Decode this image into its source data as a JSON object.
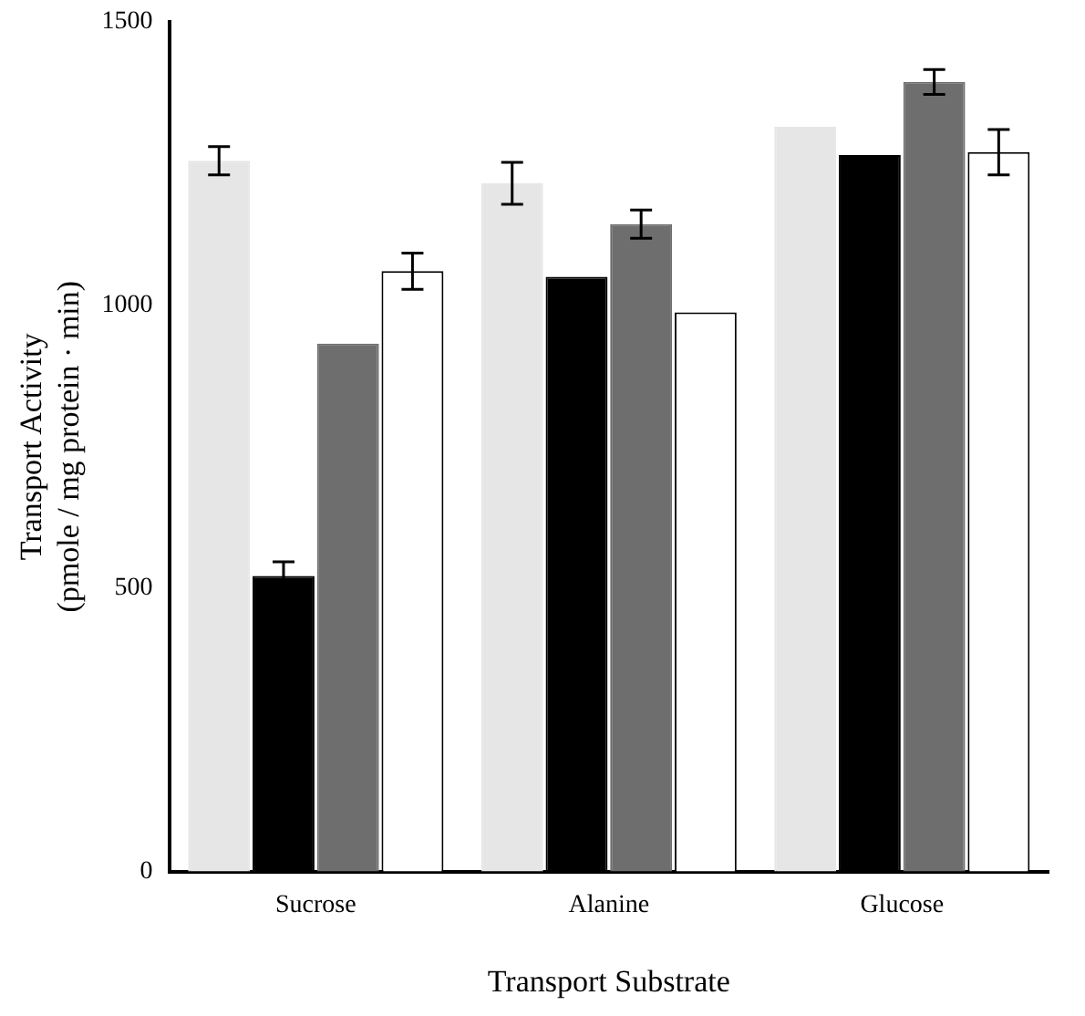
{
  "chart_data": {
    "type": "bar",
    "xlabel": "Transport Substrate",
    "ylabel": "Transport Activity\n(pmole / mg protein · min)",
    "categories": [
      "Sucrose",
      "Alanine",
      "Glucose"
    ],
    "series": [
      {
        "color": "#e6e6e6",
        "values": [
          1255,
          1215,
          1315
        ],
        "errors": [
          25,
          37,
          null
        ]
      },
      {
        "color": "#000000",
        "values": [
          522,
          1050,
          1265
        ],
        "errors": [
          25,
          null,
          null
        ]
      },
      {
        "color": "#6e6e6e",
        "values": [
          932,
          1143,
          1394
        ],
        "errors": [
          null,
          25,
          22
        ]
      },
      {
        "color": "#ffffff",
        "values": [
          1060,
          987,
          1270
        ],
        "errors": [
          32,
          null,
          40
        ]
      }
    ],
    "ylim": [
      0,
      1500
    ],
    "yticks": [
      0,
      500,
      1000,
      1500
    ],
    "grid": false,
    "legend": false
  }
}
